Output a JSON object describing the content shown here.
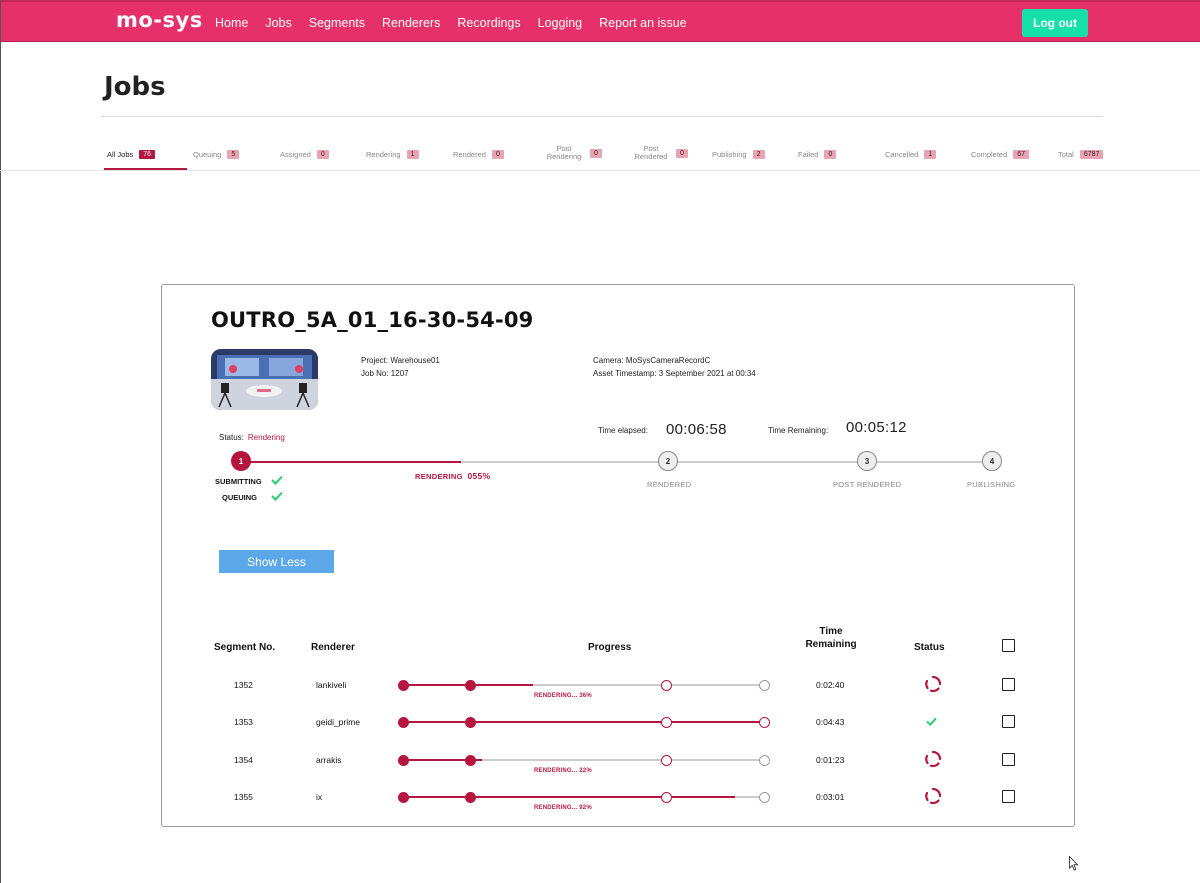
{
  "navbar": {
    "logo": "mo-sys",
    "links": [
      "Home",
      "Jobs",
      "Segments",
      "Renderers",
      "Recordings",
      "Logging",
      "Report an issue"
    ],
    "logout_label": "Log out",
    "color": "#e5306a"
  },
  "page": {
    "title": "Jobs"
  },
  "tabs": [
    {
      "label": "All Jobs",
      "count": "76",
      "active": true
    },
    {
      "label": "Queuing",
      "count": "5"
    },
    {
      "label": "Assigned",
      "count": "0"
    },
    {
      "label": "Rendering",
      "count": "1"
    },
    {
      "label": "Rendered",
      "count": "0"
    },
    {
      "label": "Post Rendering",
      "count": "0"
    },
    {
      "label": "Post Rendered",
      "count": "0"
    },
    {
      "label": "Publishing",
      "count": "2"
    },
    {
      "label": "Failed",
      "count": "0"
    },
    {
      "label": "Cancelled",
      "count": "1"
    },
    {
      "label": "Completed",
      "count": "67"
    },
    {
      "label": "Total",
      "count": "6787"
    }
  ],
  "job": {
    "title": "OUTRO_5A_01_16-30-54-09",
    "project": "Project: Warehouse01",
    "job_no": "Job No: 1207",
    "camera": "Camera: MoSysCameraRecordC",
    "asset_timestamp": "Asset Timestamp: 3 September 2021 at 00:34",
    "status_label": "Status:",
    "status_value": "Rendering",
    "time_elapsed_label": "Time elapsed:",
    "time_elapsed": "00:06:58",
    "time_remaining_label": "Time Remaining:",
    "time_remaining": "00:05:12",
    "progress_fraction": 0.55,
    "steps": [
      {
        "num": "1",
        "label": "RENDERING",
        "pct": "055%",
        "state": "active"
      },
      {
        "num": "2",
        "label": "RENDERED",
        "state": "pending"
      },
      {
        "num": "3",
        "label": "POST RENDERED",
        "state": "pending"
      },
      {
        "num": "4",
        "label": "PUBLISHING",
        "state": "pending"
      }
    ],
    "substeps": [
      {
        "label": "SUBMITTING",
        "done": true
      },
      {
        "label": "QUEUING",
        "done": true
      }
    ],
    "show_less_label": "Show Less"
  },
  "segments": {
    "headers": {
      "segment": "Segment No.",
      "renderer": "Renderer",
      "progress": "Progress",
      "time_remaining": "Time Remaining",
      "status": "Status"
    },
    "rows": [
      {
        "segment": "1352",
        "renderer": "lankiveli",
        "progress": 0.36,
        "label": "RENDERING... 36%",
        "time": "0:02:40",
        "status": "rendering"
      },
      {
        "segment": "1353",
        "renderer": "geidi_prime",
        "progress": 1.0,
        "label": "",
        "time": "0:04:43",
        "status": "done"
      },
      {
        "segment": "1354",
        "renderer": "arrakis",
        "progress": 0.22,
        "label": "RENDERING... 22%",
        "time": "0:01:23",
        "status": "rendering"
      },
      {
        "segment": "1355",
        "renderer": "ix",
        "progress": 0.92,
        "label": "RENDERING... 92%",
        "time": "0:03:01",
        "status": "rendering"
      }
    ]
  },
  "colors": {
    "accent": "#b5163f",
    "nav": "#e5306a",
    "logout": "#14e0a8",
    "button": "#5ba7e8",
    "check": "#2ecc71"
  }
}
